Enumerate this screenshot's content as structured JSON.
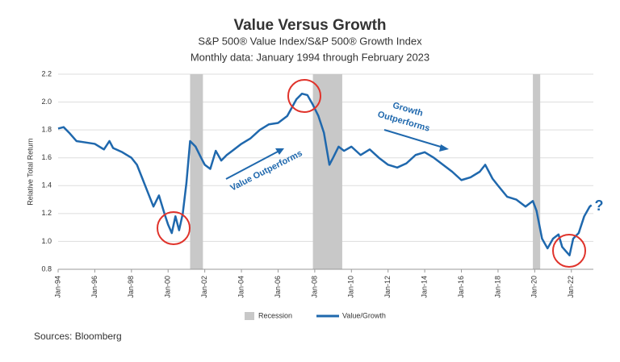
{
  "chart_data": {
    "type": "line",
    "title": "Value Versus Growth",
    "subtitle": "S&P 500® Value Index/S&P 500® Growth Index",
    "subtitle2": "Monthly data: January 1994 through February 2023",
    "y_label": "Relative Total Return",
    "source": "Sources: Bloomberg",
    "x": [
      1994.0,
      1994.3,
      1994.6,
      1995.0,
      1995.5,
      1996.0,
      1996.5,
      1996.8,
      1997.0,
      1997.5,
      1998.0,
      1998.3,
      1998.6,
      1998.9,
      1999.2,
      1999.5,
      1999.8,
      2000.0,
      2000.2,
      2000.4,
      2000.6,
      2000.8,
      2001.0,
      2001.2,
      2001.5,
      2001.8,
      2002.0,
      2002.3,
      2002.6,
      2002.9,
      2003.2,
      2003.5,
      2004.0,
      2004.5,
      2005.0,
      2005.5,
      2006.0,
      2006.5,
      2007.0,
      2007.3,
      2007.6,
      2007.9,
      2008.2,
      2008.5,
      2008.8,
      2009.0,
      2009.3,
      2009.6,
      2010.0,
      2010.5,
      2011.0,
      2011.5,
      2012.0,
      2012.5,
      2013.0,
      2013.5,
      2014.0,
      2014.5,
      2015.0,
      2015.5,
      2016.0,
      2016.5,
      2017.0,
      2017.3,
      2017.7,
      2018.0,
      2018.5,
      2019.0,
      2019.5,
      2019.9,
      2020.1,
      2020.4,
      2020.7,
      2021.0,
      2021.3,
      2021.5,
      2021.7,
      2021.9,
      2022.1,
      2022.4,
      2022.7,
      2023.0,
      2023.1
    ],
    "series": [
      {
        "name": "Value/Growth",
        "color": "#1f68ad",
        "values": [
          1.81,
          1.82,
          1.78,
          1.72,
          1.71,
          1.7,
          1.66,
          1.72,
          1.67,
          1.64,
          1.6,
          1.55,
          1.45,
          1.35,
          1.25,
          1.33,
          1.2,
          1.12,
          1.06,
          1.18,
          1.08,
          1.2,
          1.42,
          1.72,
          1.68,
          1.6,
          1.55,
          1.52,
          1.65,
          1.58,
          1.62,
          1.65,
          1.7,
          1.74,
          1.8,
          1.84,
          1.85,
          1.9,
          2.02,
          2.06,
          2.05,
          1.98,
          1.9,
          1.78,
          1.55,
          1.6,
          1.68,
          1.65,
          1.68,
          1.62,
          1.66,
          1.6,
          1.55,
          1.53,
          1.56,
          1.62,
          1.64,
          1.6,
          1.55,
          1.5,
          1.44,
          1.46,
          1.5,
          1.55,
          1.45,
          1.4,
          1.32,
          1.3,
          1.25,
          1.29,
          1.22,
          1.02,
          0.95,
          1.02,
          1.05,
          0.96,
          0.93,
          0.9,
          1.02,
          1.06,
          1.18,
          1.25,
          1.26
        ]
      }
    ],
    "recession": {
      "name": "Recession",
      "color": "#c8c8c8",
      "periods": [
        [
          2001.2,
          2001.9
        ],
        [
          2007.9,
          2009.5
        ],
        [
          2019.9,
          2020.3
        ]
      ]
    },
    "annotations": [
      "Value Outperforms",
      "Growth",
      "Outperforms",
      "?"
    ],
    "xlim": [
      1994,
      2023.2
    ],
    "xticks": [
      {
        "value": 1994,
        "label": "Jan-94"
      },
      {
        "value": 1996,
        "label": "Jan-96"
      },
      {
        "value": 1998,
        "label": "Jan-98"
      },
      {
        "value": 2000,
        "label": "Jan-00"
      },
      {
        "value": 2002,
        "label": "Jan-02"
      },
      {
        "value": 2004,
        "label": "Jan-04"
      },
      {
        "value": 2006,
        "label": "Jan-06"
      },
      {
        "value": 2008,
        "label": "Jan-08"
      },
      {
        "value": 2010,
        "label": "Jan-10"
      },
      {
        "value": 2012,
        "label": "Jan-12"
      },
      {
        "value": 2014,
        "label": "Jan-14"
      },
      {
        "value": 2016,
        "label": "Jan-16"
      },
      {
        "value": 2018,
        "label": "Jan-18"
      },
      {
        "value": 2020,
        "label": "Jan-20"
      },
      {
        "value": 2022,
        "label": "Jan-22"
      }
    ],
    "ylim": [
      0.8,
      2.2
    ],
    "yticks": [
      0.8,
      {
        "value": 1.0,
        "label": "1.0"
      },
      1.2,
      1.4,
      1.6,
      1.8,
      {
        "value": 2.0,
        "label": "2.0"
      },
      2.2
    ],
    "grid": true
  }
}
